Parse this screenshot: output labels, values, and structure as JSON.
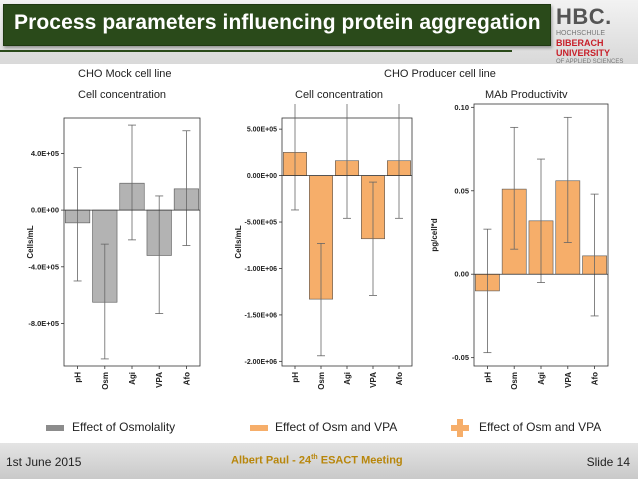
{
  "header": {
    "title": "Process parameters influencing protein aggregation",
    "logo": {
      "main": "HBC.",
      "line1": "HOCHSCHULE",
      "line2": "BIBERACH",
      "line3": "UNIVERSITY",
      "line4": "OF APPLIED SCIENCES"
    }
  },
  "labels": {
    "cho_mock": "CHO Mock cell line",
    "cho_producer": "CHO Producer cell line",
    "cell_conc_1": "Cell concentration",
    "cell_conc_2": "Cell concentration",
    "mab_productivity": "MAb Productivity"
  },
  "legend": {
    "item1": "Effect of Osmolality",
    "item2": "Effect of Osm and VPA",
    "item3": "Effect of Osm and VPA"
  },
  "footer": {
    "date": "1st June 2015",
    "event_pre": "Albert Paul - 24",
    "event_sup": "th",
    "event_post": " ESACT Meeting",
    "slide": "Slide 14"
  },
  "colors": {
    "grey_bar": "#b3b3b3",
    "orange_bar": "#f6ae6a",
    "title_bg": "#2a4a1a",
    "logo_red": "#c8202a",
    "footer_text": "#b8860b"
  },
  "chart_data": [
    {
      "type": "bar",
      "title": "Cell concentration",
      "ylabel": "Cells/mL",
      "categories": [
        "pH",
        "Osm",
        "Agi",
        "VPA",
        "Afo"
      ],
      "values": [
        -90000,
        -650000,
        190000,
        -320000,
        150000
      ],
      "error": [
        [
          -500000,
          300000
        ],
        [
          -1050000,
          -240000
        ],
        [
          -210000,
          600000
        ],
        [
          -730000,
          100000
        ],
        [
          -250000,
          560000
        ]
      ],
      "yticks": [
        400000,
        0,
        -400000,
        -800000
      ],
      "ytick_labels": [
        "4.0E+05",
        "0.0E+00",
        "-4.0E+05",
        "-8.0E+05"
      ],
      "ylim": [
        -1100000,
        650000
      ],
      "color": "#b3b3b3"
    },
    {
      "type": "bar",
      "title": "Cell concentration",
      "ylabel": "Cells/mL",
      "categories": [
        "pH",
        "Osm",
        "Agi",
        "VPA",
        "Afo"
      ],
      "values": [
        250000,
        -1330000,
        160000,
        -680000,
        160000
      ],
      "error": [
        [
          -370000,
          870000
        ],
        [
          -1940000,
          -730000
        ],
        [
          -460000,
          780000
        ],
        [
          -1290000,
          -70000
        ],
        [
          -460000,
          780000
        ]
      ],
      "yticks": [
        500000,
        0,
        -500000,
        -1000000,
        -1500000,
        -2000000
      ],
      "ytick_labels": [
        "5.00E+05",
        "0.00E+00",
        "-5.00E+05",
        "-1.00E+06",
        "-1.50E+06",
        "-2.00E+06"
      ],
      "ylim": [
        -2050000,
        620000
      ],
      "color": "#f6ae6a"
    },
    {
      "type": "bar",
      "title": "MAb Productivity",
      "ylabel": "pg/cell*d",
      "categories": [
        "pH",
        "Osm",
        "Agi",
        "VPA",
        "Afo"
      ],
      "values": [
        -0.01,
        0.051,
        0.032,
        0.056,
        0.011
      ],
      "error": [
        [
          -0.047,
          0.027
        ],
        [
          0.015,
          0.088
        ],
        [
          -0.005,
          0.069
        ],
        [
          0.019,
          0.094
        ],
        [
          -0.025,
          0.048
        ]
      ],
      "yticks": [
        0.1,
        0.05,
        0.0,
        -0.05
      ],
      "ytick_labels": [
        "0.10",
        "0.05",
        "0.00",
        "-0.05"
      ],
      "ylim": [
        -0.055,
        0.102
      ],
      "color": "#f6ae6a"
    }
  ]
}
